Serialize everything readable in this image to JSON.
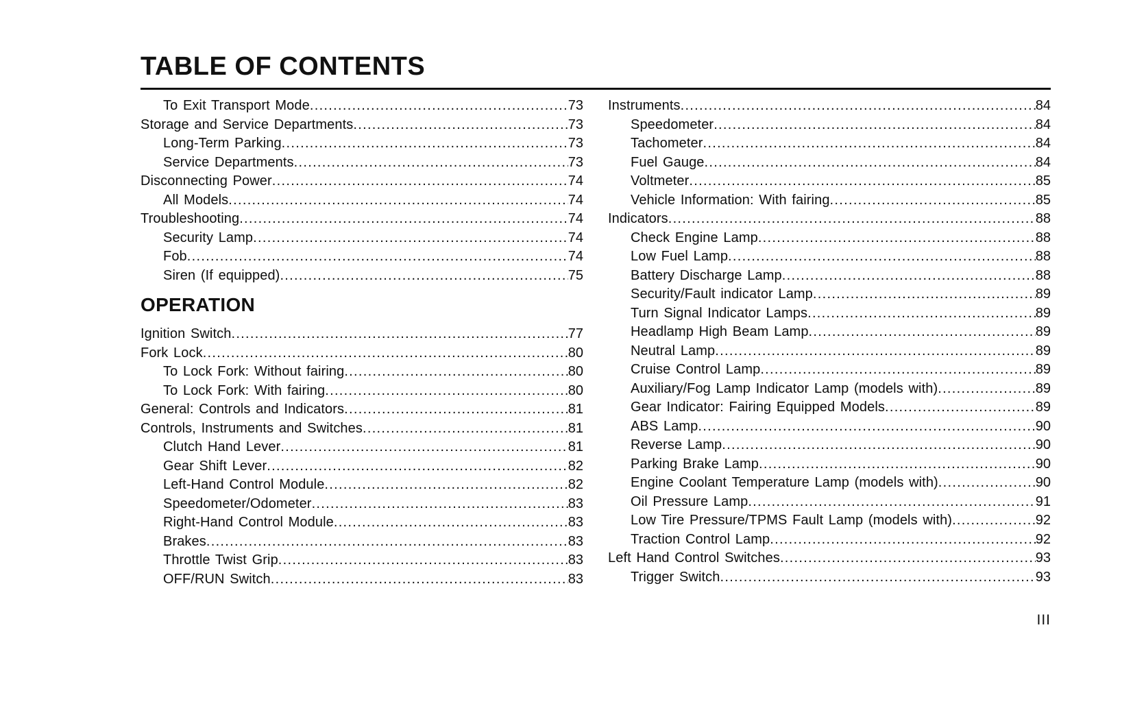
{
  "page": {
    "title": "TABLE OF CONTENTS",
    "folio": "III"
  },
  "toc": {
    "columns": [
      {
        "name": "left",
        "items": [
          {
            "label": "To Exit Transport Mode",
            "page": "73",
            "indent": 1
          },
          {
            "label": "Storage and Service Departments",
            "page": "73",
            "indent": 0
          },
          {
            "label": "Long-Term Parking",
            "page": "73",
            "indent": 1
          },
          {
            "label": "Service Departments",
            "page": "73",
            "indent": 1
          },
          {
            "label": "Disconnecting Power",
            "page": "74",
            "indent": 0
          },
          {
            "label": "All Models",
            "page": "74",
            "indent": 1
          },
          {
            "label": "Troubleshooting",
            "page": "74",
            "indent": 0
          },
          {
            "label": "Security Lamp",
            "page": "74",
            "indent": 1
          },
          {
            "label": "Fob",
            "page": "74",
            "indent": 1
          },
          {
            "label": "Siren (If equipped)",
            "page": "75",
            "indent": 1
          },
          {
            "section": "OPERATION"
          },
          {
            "label": "Ignition Switch",
            "page": "77",
            "indent": 0
          },
          {
            "label": "Fork Lock",
            "page": "80",
            "indent": 0
          },
          {
            "label": "To Lock Fork: Without fairing",
            "page": "80",
            "indent": 1
          },
          {
            "label": "To Lock Fork: With fairing",
            "page": "80",
            "indent": 1
          },
          {
            "label": "General: Controls and Indicators",
            "page": "81",
            "indent": 0
          },
          {
            "label": "Controls, Instruments and Switches",
            "page": "81",
            "indent": 0
          },
          {
            "label": "Clutch Hand Lever",
            "page": "81",
            "indent": 1
          },
          {
            "label": "Gear Shift Lever",
            "page": "82",
            "indent": 1
          },
          {
            "label": "Left-Hand Control Module",
            "page": "82",
            "indent": 1
          },
          {
            "label": "Speedometer/Odometer",
            "page": "83",
            "indent": 1
          },
          {
            "label": "Right-Hand Control Module",
            "page": "83",
            "indent": 1
          },
          {
            "label": "Brakes",
            "page": "83",
            "indent": 1
          },
          {
            "label": "Throttle Twist Grip",
            "page": "83",
            "indent": 1
          },
          {
            "label": "OFF/RUN Switch",
            "page": "83",
            "indent": 1
          }
        ]
      },
      {
        "name": "right",
        "items": [
          {
            "label": "Instruments",
            "page": "84",
            "indent": 0
          },
          {
            "label": "Speedometer",
            "page": "84",
            "indent": 1
          },
          {
            "label": "Tachometer",
            "page": "84",
            "indent": 1
          },
          {
            "label": "Fuel Gauge",
            "page": "84",
            "indent": 1
          },
          {
            "label": "Voltmeter",
            "page": "85",
            "indent": 1
          },
          {
            "label": "Vehicle Information: With fairing",
            "page": "85",
            "indent": 1
          },
          {
            "label": "Indicators",
            "page": "88",
            "indent": 0
          },
          {
            "label": "Check Engine Lamp",
            "page": "88",
            "indent": 1
          },
          {
            "label": "Low Fuel Lamp",
            "page": "88",
            "indent": 1
          },
          {
            "label": "Battery Discharge Lamp",
            "page": "88",
            "indent": 1
          },
          {
            "label": "Security/Fault indicator Lamp",
            "page": "89",
            "indent": 1
          },
          {
            "label": "Turn Signal Indicator Lamps",
            "page": "89",
            "indent": 1
          },
          {
            "label": "Headlamp High Beam Lamp",
            "page": "89",
            "indent": 1
          },
          {
            "label": "Neutral Lamp",
            "page": "89",
            "indent": 1
          },
          {
            "label": "Cruise Control Lamp",
            "page": "89",
            "indent": 1
          },
          {
            "label": "Auxiliary/Fog Lamp Indicator Lamp (models with)",
            "page": "89",
            "indent": 1
          },
          {
            "label": "Gear Indicator: Fairing Equipped Models",
            "page": "89",
            "indent": 1
          },
          {
            "label": "ABS Lamp",
            "page": "90",
            "indent": 1
          },
          {
            "label": "Reverse Lamp",
            "page": "90",
            "indent": 1
          },
          {
            "label": "Parking Brake Lamp",
            "page": "90",
            "indent": 1
          },
          {
            "label": "Engine Coolant Temperature Lamp (models with)",
            "page": "90",
            "indent": 1
          },
          {
            "label": "Oil Pressure Lamp",
            "page": "91",
            "indent": 1
          },
          {
            "label": "Low Tire Pressure/TPMS Fault Lamp (models with)",
            "page": "92",
            "indent": 1
          },
          {
            "label": "Traction Control Lamp",
            "page": "92",
            "indent": 1
          },
          {
            "label": "Left Hand Control Switches",
            "page": "93",
            "indent": 0
          },
          {
            "label": "Trigger Switch",
            "page": "93",
            "indent": 1
          }
        ]
      }
    ]
  }
}
